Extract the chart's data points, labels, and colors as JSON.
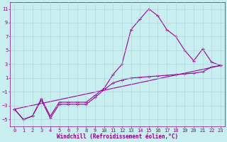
{
  "xlabel": "Windchill (Refroidissement éolien,°C)",
  "background_color": "#c8eef0",
  "line_color": "#990099",
  "xlim": [
    -0.5,
    23.5
  ],
  "ylim": [
    -6,
    12
  ],
  "xticks": [
    0,
    1,
    2,
    3,
    4,
    5,
    6,
    7,
    8,
    9,
    10,
    11,
    12,
    13,
    14,
    15,
    16,
    17,
    18,
    19,
    20,
    21,
    22,
    23
  ],
  "yticks": [
    -5,
    -3,
    -1,
    1,
    3,
    5,
    7,
    9,
    11
  ],
  "series1_x": [
    0,
    1,
    2,
    3,
    4,
    5,
    6,
    7,
    8,
    9,
    10,
    11,
    12,
    13,
    14,
    15,
    16,
    17,
    18,
    19,
    20,
    21,
    22,
    23
  ],
  "series1_y": [
    -3.5,
    -5.0,
    -4.5,
    -2.0,
    -4.5,
    -2.5,
    -2.5,
    -2.5,
    -2.5,
    -1.5,
    -0.5,
    1.5,
    3.0,
    8.0,
    9.5,
    11.0,
    10.0,
    8.0,
    7.0,
    5.0,
    3.5,
    5.2,
    3.3,
    2.8
  ],
  "series2_x": [
    0,
    1,
    2,
    3,
    4,
    5,
    6,
    7,
    8,
    9,
    10,
    11,
    12,
    13,
    14,
    15,
    16,
    17,
    18,
    19,
    20,
    21,
    22,
    23
  ],
  "series2_y": [
    -3.5,
    -5.0,
    -4.5,
    -2.2,
    -4.8,
    -2.8,
    -2.8,
    -2.8,
    -2.8,
    -1.8,
    -0.7,
    0.3,
    0.7,
    1.0,
    1.1,
    1.2,
    1.3,
    1.4,
    1.5,
    1.6,
    1.7,
    1.9,
    2.6,
    2.8
  ],
  "series3_x": [
    0,
    23
  ],
  "series3_y": [
    -3.5,
    2.8
  ],
  "grid_color": "#aad4d8",
  "font_color": "#880088",
  "tick_fontsize": 5,
  "xlabel_fontsize": 5.5
}
